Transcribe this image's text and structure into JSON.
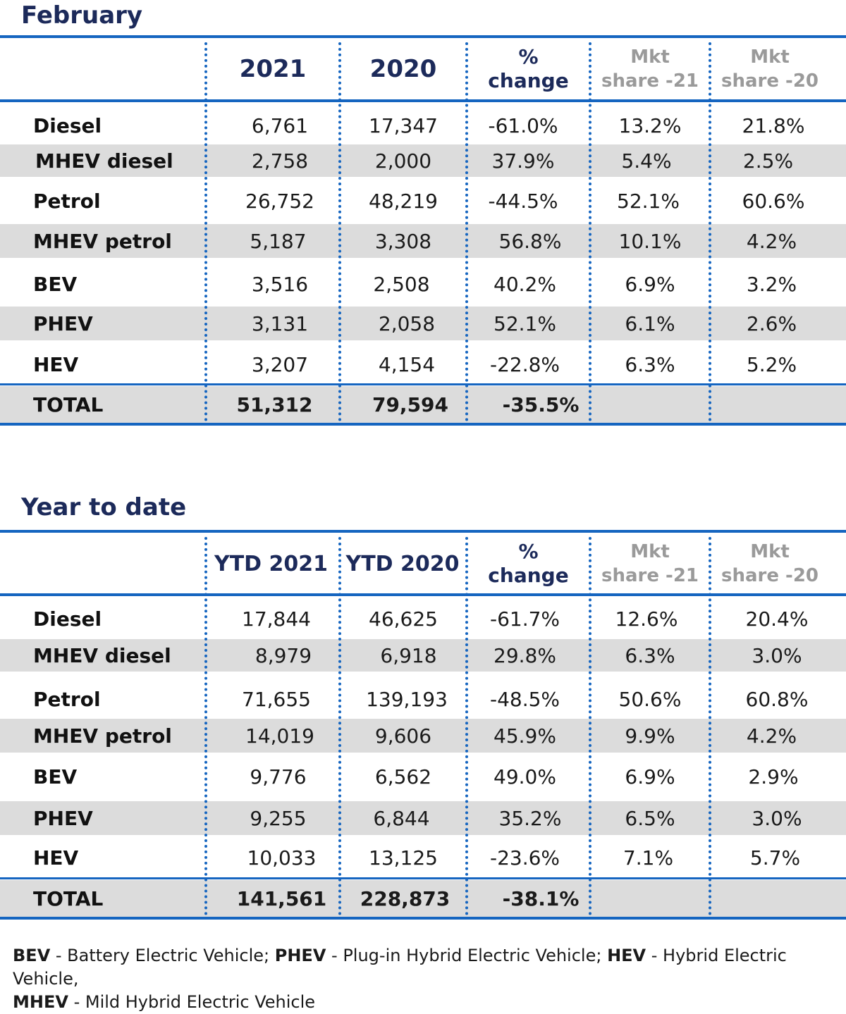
{
  "footnote": {
    "bev_abbr": "BEV",
    "bev_text": " - Battery Electric Vehicle; ",
    "phev_abbr": "PHEV",
    "phev_text": " - Plug-in Hybrid Electric Vehicle; ",
    "hev_abbr": "HEV",
    "hev_text": " - Hybrid Electric Vehicle,",
    "mhev_abbr": "MHEV",
    "mhev_text": " - Mild Hybrid Electric Vehicle"
  },
  "colors": {
    "accent_blue": "#1565c0",
    "title_navy": "#1c2a5a",
    "shade_gray": "#dcdcdc",
    "muted_gray": "#9a9a9a"
  },
  "tables": [
    {
      "title": "February",
      "headers": {
        "col1": "2021",
        "col2": "2020",
        "change_line1": "%",
        "change_line2": "change",
        "share21_line1": "Mkt",
        "share21_line2": "share -21",
        "share20_line1": "Mkt",
        "share20_line2": "share -20"
      },
      "rows": [
        {
          "label": "Diesel",
          "v2021": "6,761",
          "v2020": "17,347",
          "change": "-61.0%",
          "share21": "13.2%",
          "share20": "21.8%"
        },
        {
          "label": "MHEV diesel",
          "v2021": "2,758",
          "v2020": "2,000",
          "change": "37.9%",
          "share21": "5.4%",
          "share20": "2.5%"
        },
        {
          "label": "Petrol",
          "v2021": "26,752",
          "v2020": "48,219",
          "change": "-44.5%",
          "share21": "52.1%",
          "share20": "60.6%"
        },
        {
          "label": "MHEV petrol",
          "v2021": "5,187",
          "v2020": "3,308",
          "change": "56.8%",
          "share21": "10.1%",
          "share20": "4.2%"
        },
        {
          "label": "BEV",
          "v2021": "3,516",
          "v2020": "2,508",
          "change": "40.2%",
          "share21": "6.9%",
          "share20": "3.2%"
        },
        {
          "label": "PHEV",
          "v2021": "3,131",
          "v2020": "2,058",
          "change": "52.1%",
          "share21": "6.1%",
          "share20": "2.6%"
        },
        {
          "label": "HEV",
          "v2021": "3,207",
          "v2020": "4,154",
          "change": "-22.8%",
          "share21": "6.3%",
          "share20": "5.2%"
        }
      ],
      "total": {
        "label": "TOTAL",
        "v2021": "51,312",
        "v2020": "79,594",
        "change": "-35.5%"
      }
    },
    {
      "title": "Year to date",
      "headers": {
        "col1": "YTD 2021",
        "col2": "YTD 2020",
        "change_line1": "%",
        "change_line2": "change",
        "share21_line1": "Mkt",
        "share21_line2": "share -21",
        "share20_line1": "Mkt",
        "share20_line2": "share -20"
      },
      "rows": [
        {
          "label": "Diesel",
          "v2021": "17,844",
          "v2020": "46,625",
          "change": "-61.7%",
          "share21": "12.6%",
          "share20": "20.4%"
        },
        {
          "label": "MHEV diesel",
          "v2021": "8,979",
          "v2020": "6,918",
          "change": "29.8%",
          "share21": "6.3%",
          "share20": "3.0%"
        },
        {
          "label": "Petrol",
          "v2021": "71,655",
          "v2020": "139,193",
          "change": "-48.5%",
          "share21": "50.6%",
          "share20": "60.8%"
        },
        {
          "label": "MHEV petrol",
          "v2021": "14,019",
          "v2020": "9,606",
          "change": "45.9%",
          "share21": "9.9%",
          "share20": "4.2%"
        },
        {
          "label": "BEV",
          "v2021": "9,776",
          "v2020": "6,562",
          "change": "49.0%",
          "share21": "6.9%",
          "share20": "2.9%"
        },
        {
          "label": "PHEV",
          "v2021": "9,255",
          "v2020": "6,844",
          "change": "35.2%",
          "share21": "6.5%",
          "share20": "3.0%"
        },
        {
          "label": "HEV",
          "v2021": "10,033",
          "v2020": "13,125",
          "change": "-23.6%",
          "share21": "7.1%",
          "share20": "5.7%"
        }
      ],
      "total": {
        "label": "TOTAL",
        "v2021": "141,561",
        "v2020": "228,873",
        "change": "-38.1%"
      }
    }
  ]
}
